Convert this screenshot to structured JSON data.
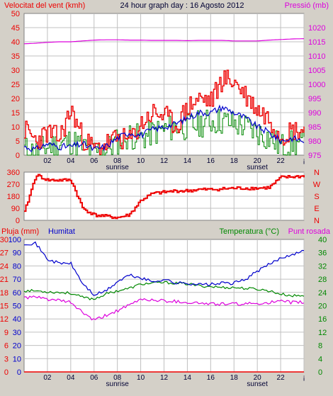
{
  "colors": {
    "wind_speed": "#ee0000",
    "wind_avg": "#0000cc",
    "wind_alt": "#008800",
    "pressure": "#dd00dd",
    "direction": "#ee0000",
    "humidity": "#0000cc",
    "temperature": "#008800",
    "dew_point": "#dd00dd",
    "rain": "#ee0000",
    "plot_bg": "#ffffff",
    "page_bg": "#d4d0c8",
    "grid": "#c0c0c0"
  },
  "chart_data": [
    {
      "type": "line",
      "title": "24 hour graph day : 16 Agosto 2012",
      "ylabel": "Velocitat del vent (kmh)",
      "ylabel_right": "Pressió (mb)",
      "ylim": [
        0,
        50
      ],
      "yticks": [
        "50",
        "45",
        "40",
        "35",
        "30",
        "25",
        "20",
        "15",
        "10",
        "5",
        "0"
      ],
      "ylim_right": [
        975,
        1020
      ],
      "yticks_right": [
        "1020",
        "1015",
        "1010",
        "1005",
        "1000",
        "995",
        "990",
        "985",
        "980",
        "975"
      ],
      "xticks": [
        "02",
        "04",
        "06",
        "08",
        "10",
        "12",
        "14",
        "16",
        "18",
        "20",
        "22",
        "¡"
      ],
      "xmarkers": {
        "sunrise": "sunrise",
        "sunset": "sunset",
        "sunrise_hour": 8,
        "sunset_hour": 20
      },
      "grid": true,
      "series": [
        {
          "key": "gust",
          "values": [
            9,
            5,
            8,
            6,
            16,
            6,
            2,
            4,
            6,
            5,
            11,
            15,
            14,
            10,
            17,
            20,
            19,
            27,
            26,
            21,
            16,
            13,
            7,
            9,
            9
          ]
        },
        {
          "key": "avg",
          "values": [
            3,
            2,
            4,
            3,
            3,
            4,
            2,
            3,
            6,
            8,
            7,
            9,
            10,
            11,
            13,
            15,
            15,
            17,
            15,
            13,
            10,
            8,
            5,
            6,
            5
          ]
        },
        {
          "key": "gust2",
          "values": [
            2,
            1,
            3,
            4,
            5,
            3,
            1,
            2,
            5,
            7,
            6,
            8,
            9,
            10,
            10,
            11,
            12,
            12,
            11,
            10,
            8,
            6,
            3,
            4,
            4
          ]
        },
        {
          "key": "pressure",
          "values": [
            1014.3,
            1014.5,
            1014.8,
            1015.0,
            1015.0,
            1015.3,
            1015.6,
            1015.7,
            1015.7,
            1015.6,
            1015.6,
            1015.5,
            1015.5,
            1015.5,
            1015.4,
            1015.5,
            1015.5,
            1015.5,
            1015.3,
            1015.3,
            1015.3,
            1015.6,
            1015.8,
            1016.0,
            1016.1
          ]
        }
      ]
    },
    {
      "type": "line",
      "yticks": [
        "360",
        "270",
        "180",
        "90",
        "0"
      ],
      "yticks_right": [
        "N",
        "W",
        "S",
        "E",
        "N"
      ],
      "ylim": [
        0,
        360
      ],
      "grid": true,
      "series": [
        {
          "key": "direction",
          "values": [
            60,
            340,
            300,
            300,
            300,
            90,
            40,
            30,
            20,
            40,
            150,
            200,
            210,
            220,
            220,
            230,
            230,
            235,
            240,
            240,
            240,
            245,
            320,
            325,
            330
          ]
        }
      ]
    },
    {
      "type": "line",
      "ylabel_left": "Pluja (mm)",
      "ylabel_left2": "Humitat",
      "ylabel_right": "Temperatura (°C)",
      "ylabel_right2": "Punt rosada",
      "yticks_rain": [
        "30",
        "27",
        "24",
        "21",
        "18",
        "15",
        "12",
        "9",
        "6",
        "3",
        "0"
      ],
      "yticks_hum": [
        "100",
        "90",
        "80",
        "70",
        "60",
        "50",
        "40",
        "30",
        "20",
        "10",
        "0"
      ],
      "yticks_temp": [
        "40",
        "36",
        "32",
        "28",
        "24",
        "20",
        "16",
        "12",
        "8",
        "4",
        "0"
      ],
      "ylim_rain": [
        0,
        30
      ],
      "ylim_hum": [
        0,
        100
      ],
      "ylim_temp": [
        0,
        40
      ],
      "xticks": [
        "02",
        "04",
        "06",
        "08",
        "10",
        "12",
        "14",
        "16",
        "18",
        "20",
        "22",
        "¡"
      ],
      "xmarkers": {
        "sunrise": "sunrise",
        "sunset": "sunset",
        "sunrise_hour": 8,
        "sunset_hour": 20
      },
      "grid": true,
      "series": [
        {
          "key": "humidity",
          "values": [
            97,
            97,
            85,
            82,
            82,
            67,
            58,
            61,
            68,
            73,
            71,
            68,
            70,
            67,
            67,
            66,
            66,
            67,
            67,
            70,
            76,
            81,
            86,
            89,
            91
          ]
        },
        {
          "key": "temperature",
          "values": [
            24.5,
            24.5,
            24.2,
            24.0,
            23.8,
            22.5,
            22.0,
            23.5,
            24.5,
            25.2,
            26.5,
            26.8,
            27.0,
            26.8,
            26.6,
            26.0,
            25.8,
            25.5,
            25.5,
            25.2,
            25.0,
            24.5,
            23.5,
            23.0,
            23.0
          ]
        },
        {
          "key": "dew_point",
          "values": [
            22.5,
            22.5,
            22.0,
            21.5,
            21.0,
            18.0,
            15.5,
            17.0,
            18.5,
            20.0,
            22.0,
            21.7,
            21.5,
            21.3,
            21.0,
            20.8,
            20.5,
            20.5,
            20.5,
            20.5,
            20.7,
            21.0,
            21.2,
            21.0,
            21.0
          ]
        },
        {
          "key": "rain",
          "values": [
            0,
            0,
            0,
            0,
            0,
            0,
            0,
            0,
            0,
            0,
            0,
            0,
            0,
            0,
            0,
            0,
            0,
            0,
            0,
            0,
            0,
            0,
            0,
            0,
            0
          ]
        }
      ]
    }
  ]
}
